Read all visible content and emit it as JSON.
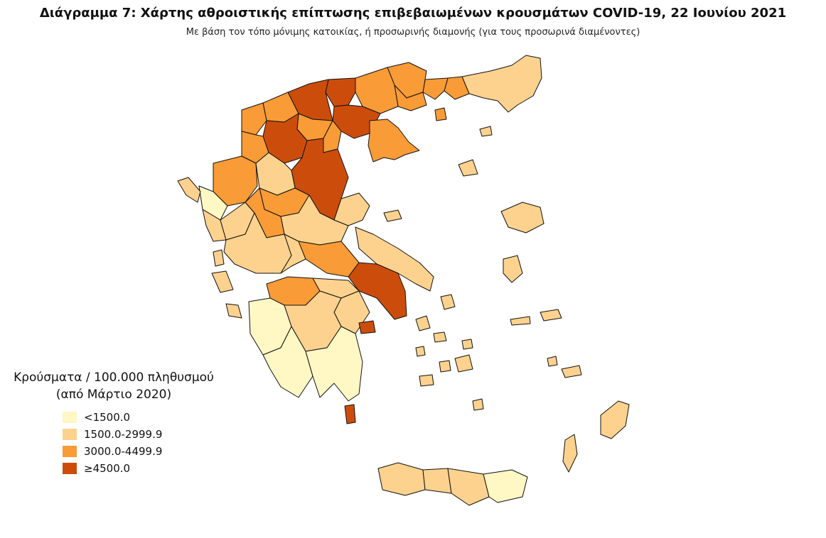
{
  "header": {
    "title": "Διάγραμμα 7: Χάρτης αθροιστικής επίπτωσης επιβεβαιωμένων κρουσμάτων COVID-19, 22 Ιουνίου 2021",
    "subtitle": "Με βάση τον τόπο μόνιμης κατοικίας, ή προσωρινής διαμονής (για τους προσωρινά διαμένοντες)"
  },
  "legend": {
    "title_line1": "Κρούσματα / 100.000 πληθυσμού",
    "title_line2": "(από Μάρτιο 2020)",
    "items": [
      {
        "label": "<1500.0",
        "color": "#FFF7C4"
      },
      {
        "label": "1500.0-2999.9",
        "color": "#FDD28E"
      },
      {
        "label": "3000.0-4499.9",
        "color": "#F99B36"
      },
      {
        "label": "≥4500.0",
        "color": "#CC4D0B"
      }
    ]
  },
  "colors": {
    "class1": "#FFF7C4",
    "class2": "#FDD28E",
    "class3": "#F99B36",
    "class4": "#CC4D0B",
    "border": "#111111"
  }
}
